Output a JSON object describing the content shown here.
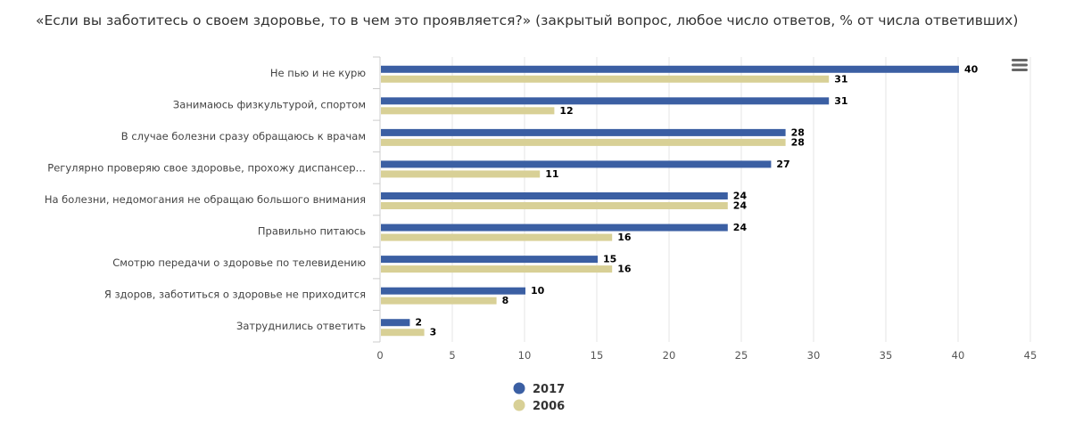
{
  "chart_data": {
    "type": "bar",
    "orientation": "horizontal",
    "title": "«Если вы заботитесь о своем здоровье, то в чем это проявляется?» (закрытый вопрос, любое число ответов, % от числа ответивших)",
    "categories": [
      "Не пью и не курю",
      "Занимаюсь физкультурой, спортом",
      "В случае болезни сразу обращаюсь к врачам",
      "Регулярно проверяю свое здоровье, прохожу диспансер…",
      "На болезни, недомогания не обращаю большого внимания",
      "Правильно питаюсь",
      "Смотрю передачи о здоровье по телевидению",
      "Я здоров, заботиться о здоровье не приходится",
      "Затруднились ответить"
    ],
    "series": [
      {
        "name": "2017",
        "color": "#3b5fa3",
        "values": [
          40,
          31,
          28,
          27,
          24,
          24,
          15,
          10,
          2
        ]
      },
      {
        "name": "2006",
        "color": "#d8d096",
        "values": [
          31,
          12,
          28,
          11,
          24,
          16,
          16,
          8,
          3
        ]
      }
    ],
    "xlim": [
      0,
      45
    ],
    "xticks": [
      0,
      5,
      10,
      15,
      20,
      25,
      30,
      35,
      40,
      45
    ],
    "grid": true,
    "legend_position": "bottom",
    "data_labels": true
  },
  "ui": {
    "menu_icon": "hamburger-menu-icon"
  }
}
